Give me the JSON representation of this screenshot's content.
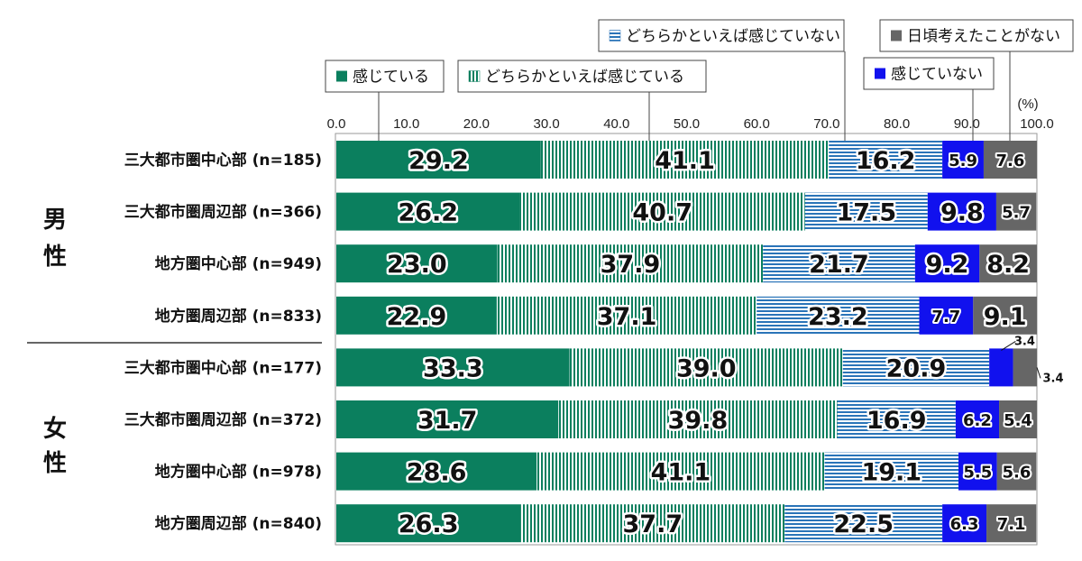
{
  "chart_data": {
    "type": "bar",
    "orientation": "horizontal-stacked",
    "unit": "(%)",
    "xlim": [
      0,
      100
    ],
    "xticks": [
      "0.0",
      "10.0",
      "20.0",
      "30.0",
      "40.0",
      "50.0",
      "60.0",
      "70.0",
      "80.0",
      "90.0",
      "100.0"
    ],
    "series": [
      {
        "name": "感じている",
        "color": "#0b7f5e"
      },
      {
        "name": "どちらかといえば感じている",
        "color": "#0b7f5e"
      },
      {
        "name": "どちらかといえば感じていない",
        "color": "#2a74b8"
      },
      {
        "name": "感じていない",
        "color": "#1111ee"
      },
      {
        "name": "日頃考えたことがない",
        "color": "#666666"
      }
    ],
    "groups": [
      {
        "label": "男性",
        "rows": [
          {
            "label": "三大都市圏中心部 (n=185)",
            "values": [
              29.2,
              41.1,
              16.2,
              5.9,
              7.6
            ],
            "labels": [
              "29.2",
              "41.1",
              "16.2",
              "5.9",
              "7.6"
            ]
          },
          {
            "label": "三大都市圏周辺部 (n=366)",
            "values": [
              26.2,
              40.7,
              17.5,
              9.8,
              5.7
            ],
            "labels": [
              "26.2",
              "40.7",
              "17.5",
              "9.8",
              "5.7"
            ]
          },
          {
            "label": "地方圏中心部 (n=949)",
            "values": [
              23.0,
              37.9,
              21.7,
              9.2,
              8.2
            ],
            "labels": [
              "23.0",
              "37.9",
              "21.7",
              "9.2",
              "8.2"
            ]
          },
          {
            "label": "地方圏周辺部 (n=833)",
            "values": [
              22.9,
              37.1,
              23.2,
              7.7,
              9.1
            ],
            "labels": [
              "22.9",
              "37.1",
              "23.2",
              "7.7",
              "9.1"
            ]
          }
        ]
      },
      {
        "label": "女性",
        "rows": [
          {
            "label": "三大都市圏中心部 (n=177)",
            "values": [
              33.3,
              39.0,
              20.9,
              3.4,
              3.4
            ],
            "labels": [
              "33.3",
              "39.0",
              "20.9",
              "3.4",
              "3.4"
            ]
          },
          {
            "label": "三大都市圏周辺部 (n=372)",
            "values": [
              31.7,
              39.8,
              16.9,
              6.2,
              5.4
            ],
            "labels": [
              "31.7",
              "39.8",
              "16.9",
              "6.2",
              "5.4"
            ]
          },
          {
            "label": "地方圏中心部 (n=978)",
            "values": [
              28.6,
              41.1,
              19.1,
              5.5,
              5.6
            ],
            "labels": [
              "28.6",
              "41.1",
              "19.1",
              "5.5",
              "5.6"
            ]
          },
          {
            "label": "地方圏周辺部 (n=840)",
            "values": [
              26.3,
              37.7,
              22.5,
              6.3,
              7.1
            ],
            "labels": [
              "26.3",
              "37.7",
              "22.5",
              "6.3",
              "7.1"
            ]
          }
        ]
      }
    ]
  }
}
